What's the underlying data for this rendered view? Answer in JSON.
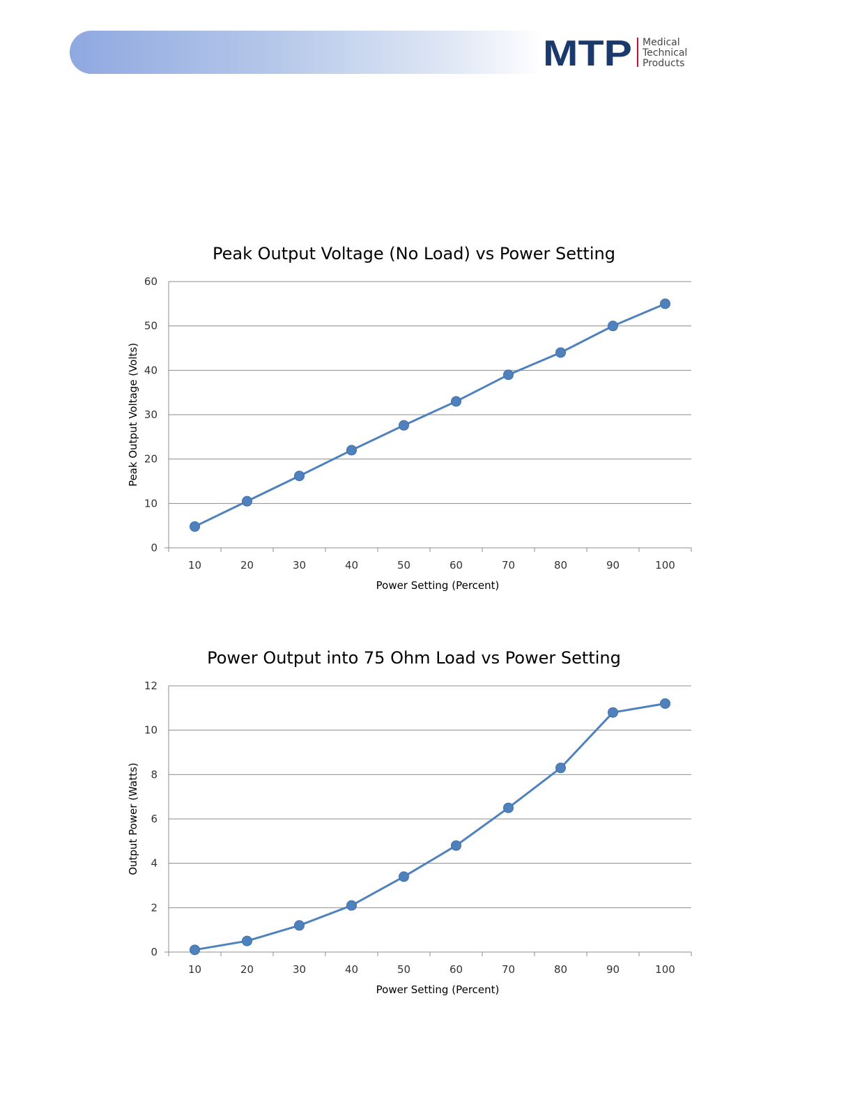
{
  "header": {
    "logo": {
      "letters": "MTP",
      "line1": "Medical",
      "line2": "Technical",
      "line3": "Products"
    }
  },
  "colors": {
    "series": "#4f81bd",
    "logo_navy": "#1b3a6b",
    "logo_accent": "#c8102e"
  },
  "chart_data": [
    {
      "type": "line",
      "title": "Peak Output Voltage (No Load) vs Power Setting",
      "xlabel": "Power Setting (Percent)",
      "ylabel": "Peak Output Voltage (Volts)",
      "categories": [
        "10",
        "20",
        "30",
        "40",
        "50",
        "60",
        "70",
        "80",
        "90",
        "100"
      ],
      "series": [
        {
          "values": [
            4.8,
            10.5,
            16.2,
            22.0,
            27.6,
            33.0,
            39.0,
            44.0,
            50.0,
            55.0
          ]
        }
      ],
      "yticks": [
        "0",
        "10",
        "20",
        "30",
        "40",
        "50",
        "60"
      ],
      "ylim": [
        0,
        60
      ],
      "grid": true,
      "legend": "none",
      "markers": true
    },
    {
      "type": "line",
      "title": "Power Output into 75 Ohm Load vs Power Setting",
      "xlabel": "Power Setting (Percent)",
      "ylabel": "Output Power (Watts)",
      "categories": [
        "10",
        "20",
        "30",
        "40",
        "50",
        "60",
        "70",
        "80",
        "90",
        "100"
      ],
      "series": [
        {
          "values": [
            0.1,
            0.5,
            1.2,
            2.1,
            3.4,
            4.8,
            6.5,
            8.3,
            10.8,
            11.2
          ]
        }
      ],
      "yticks": [
        "0",
        "2",
        "4",
        "6",
        "8",
        "10",
        "12"
      ],
      "ylim": [
        0,
        12
      ],
      "grid": true,
      "legend": "none",
      "markers": true
    }
  ]
}
